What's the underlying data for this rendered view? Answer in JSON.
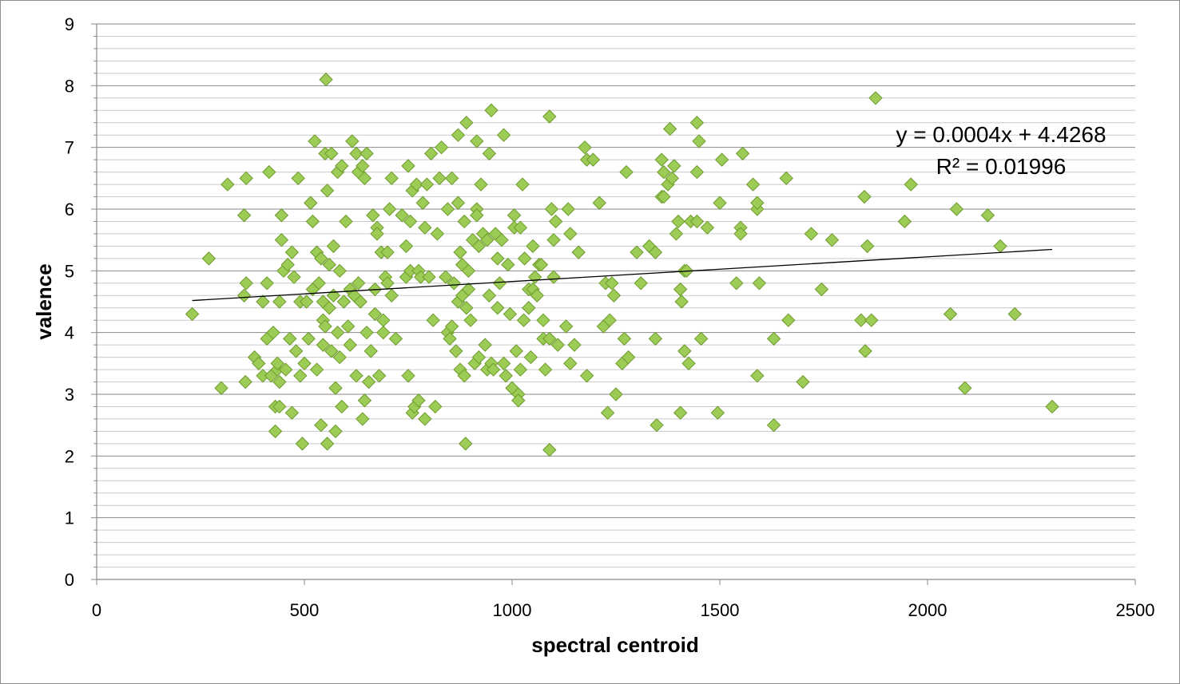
{
  "chart_data": {
    "type": "scatter",
    "xlabel": "spectral centroid",
    "ylabel": "valence",
    "xlim": [
      0,
      2500
    ],
    "ylim": [
      0,
      9
    ],
    "x_ticks": [
      0,
      500,
      1000,
      1500,
      2000,
      2500
    ],
    "y_ticks": [
      0,
      1,
      2,
      3,
      4,
      5,
      6,
      7,
      8,
      9
    ],
    "y_minor_step": 0.2,
    "grid": "horizontal",
    "marker": "diamond",
    "marker_color": "#9ccc55",
    "marker_edge_color": "#6e9a2e",
    "trendline": {
      "type": "linear",
      "slope": 0.0004,
      "intercept": 4.4268,
      "x_range": [
        230,
        2300
      ],
      "equation": "y = 0.0004x + 4.4268",
      "r_squared": "R² = 0.01996"
    },
    "points": [
      [
        230,
        4.3
      ],
      [
        270,
        5.2
      ],
      [
        300,
        3.1
      ],
      [
        315,
        6.4
      ],
      [
        355,
        5.9
      ],
      [
        355,
        4.6
      ],
      [
        360,
        4.8
      ],
      [
        360,
        6.5
      ],
      [
        358,
        3.2
      ],
      [
        380,
        3.6
      ],
      [
        390,
        3.5
      ],
      [
        400,
        4.5
      ],
      [
        400,
        3.3
      ],
      [
        410,
        3.9
      ],
      [
        410,
        4.8
      ],
      [
        415,
        6.6
      ],
      [
        420,
        3.3
      ],
      [
        425,
        4.0
      ],
      [
        430,
        2.8
      ],
      [
        430,
        2.4
      ],
      [
        435,
        3.4
      ],
      [
        435,
        3.5
      ],
      [
        440,
        2.8
      ],
      [
        440,
        3.2
      ],
      [
        440,
        4.5
      ],
      [
        445,
        5.5
      ],
      [
        445,
        5.9
      ],
      [
        450,
        5.0
      ],
      [
        455,
        3.4
      ],
      [
        460,
        5.1
      ],
      [
        465,
        3.9
      ],
      [
        470,
        5.3
      ],
      [
        470,
        2.7
      ],
      [
        475,
        4.9
      ],
      [
        480,
        3.7
      ],
      [
        485,
        6.5
      ],
      [
        490,
        4.5
      ],
      [
        490,
        3.3
      ],
      [
        495,
        2.2
      ],
      [
        500,
        3.5
      ],
      [
        505,
        4.5
      ],
      [
        510,
        3.9
      ],
      [
        515,
        6.1
      ],
      [
        520,
        4.7
      ],
      [
        520,
        5.8
      ],
      [
        525,
        7.1
      ],
      [
        530,
        5.3
      ],
      [
        530,
        3.4
      ],
      [
        535,
        4.8
      ],
      [
        540,
        5.2
      ],
      [
        540,
        2.5
      ],
      [
        545,
        4.2
      ],
      [
        545,
        3.8
      ],
      [
        545,
        4.5
      ],
      [
        550,
        6.9
      ],
      [
        550,
        4.1
      ],
      [
        552,
        8.1
      ],
      [
        555,
        2.2
      ],
      [
        555,
        6.3
      ],
      [
        560,
        5.1
      ],
      [
        560,
        4.4
      ],
      [
        565,
        3.7
      ],
      [
        565,
        6.9
      ],
      [
        570,
        5.4
      ],
      [
        570,
        4.6
      ],
      [
        575,
        3.1
      ],
      [
        575,
        2.4
      ],
      [
        580,
        6.6
      ],
      [
        580,
        4.0
      ],
      [
        585,
        5.0
      ],
      [
        585,
        3.6
      ],
      [
        590,
        6.7
      ],
      [
        590,
        2.8
      ],
      [
        595,
        4.5
      ],
      [
        600,
        5.8
      ],
      [
        605,
        4.1
      ],
      [
        610,
        3.8
      ],
      [
        610,
        4.7
      ],
      [
        615,
        7.1
      ],
      [
        620,
        4.6
      ],
      [
        625,
        6.9
      ],
      [
        625,
        3.3
      ],
      [
        630,
        4.8
      ],
      [
        630,
        6.6
      ],
      [
        635,
        4.5
      ],
      [
        640,
        6.7
      ],
      [
        640,
        2.6
      ],
      [
        645,
        6.5
      ],
      [
        645,
        2.9
      ],
      [
        650,
        6.9
      ],
      [
        650,
        4.0
      ],
      [
        655,
        3.2
      ],
      [
        660,
        3.7
      ],
      [
        665,
        5.9
      ],
      [
        670,
        4.7
      ],
      [
        670,
        4.3
      ],
      [
        675,
        5.7
      ],
      [
        675,
        5.6
      ],
      [
        680,
        3.3
      ],
      [
        685,
        5.3
      ],
      [
        690,
        4.0
      ],
      [
        690,
        4.2
      ],
      [
        695,
        4.9
      ],
      [
        700,
        4.8
      ],
      [
        700,
        5.3
      ],
      [
        705,
        6.0
      ],
      [
        710,
        4.6
      ],
      [
        710,
        6.5
      ],
      [
        720,
        3.9
      ],
      [
        735,
        5.9
      ],
      [
        745,
        5.4
      ],
      [
        745,
        4.9
      ],
      [
        750,
        3.3
      ],
      [
        750,
        6.7
      ],
      [
        755,
        5.0
      ],
      [
        755,
        5.8
      ],
      [
        760,
        2.7
      ],
      [
        760,
        6.3
      ],
      [
        765,
        2.8
      ],
      [
        770,
        6.4
      ],
      [
        775,
        2.9
      ],
      [
        775,
        5.0
      ],
      [
        780,
        4.9
      ],
      [
        785,
        6.1
      ],
      [
        790,
        5.7
      ],
      [
        790,
        2.6
      ],
      [
        795,
        6.4
      ],
      [
        800,
        4.9
      ],
      [
        805,
        6.9
      ],
      [
        810,
        4.2
      ],
      [
        815,
        2.8
      ],
      [
        820,
        5.6
      ],
      [
        825,
        6.5
      ],
      [
        830,
        7.0
      ],
      [
        840,
        4.9
      ],
      [
        845,
        6.0
      ],
      [
        845,
        4.0
      ],
      [
        850,
        3.9
      ],
      [
        855,
        6.5
      ],
      [
        855,
        4.1
      ],
      [
        860,
        4.8
      ],
      [
        865,
        3.7
      ],
      [
        870,
        7.2
      ],
      [
        870,
        6.1
      ],
      [
        870,
        4.5
      ],
      [
        875,
        5.3
      ],
      [
        875,
        3.4
      ],
      [
        880,
        5.1
      ],
      [
        880,
        4.6
      ],
      [
        885,
        5.8
      ],
      [
        885,
        3.3
      ],
      [
        888,
        2.2
      ],
      [
        890,
        7.4
      ],
      [
        890,
        4.4
      ],
      [
        895,
        4.7
      ],
      [
        895,
        5.0
      ],
      [
        900,
        4.2
      ],
      [
        905,
        5.5
      ],
      [
        910,
        3.5
      ],
      [
        915,
        7.1
      ],
      [
        915,
        6.0
      ],
      [
        915,
        5.9
      ],
      [
        920,
        5.4
      ],
      [
        920,
        3.6
      ],
      [
        925,
        6.4
      ],
      [
        930,
        5.6
      ],
      [
        935,
        3.8
      ],
      [
        940,
        5.5
      ],
      [
        940,
        3.4
      ],
      [
        945,
        6.9
      ],
      [
        945,
        4.6
      ],
      [
        950,
        7.6
      ],
      [
        950,
        3.5
      ],
      [
        955,
        3.4
      ],
      [
        960,
        5.6
      ],
      [
        965,
        4.4
      ],
      [
        965,
        5.2
      ],
      [
        970,
        4.8
      ],
      [
        975,
        5.5
      ],
      [
        980,
        7.2
      ],
      [
        980,
        3.5
      ],
      [
        985,
        3.3
      ],
      [
        990,
        5.1
      ],
      [
        995,
        4.3
      ],
      [
        1000,
        3.1
      ],
      [
        1005,
        5.9
      ],
      [
        1005,
        5.7
      ],
      [
        1010,
        3.7
      ],
      [
        1015,
        3.0
      ],
      [
        1015,
        2.9
      ],
      [
        1020,
        5.7
      ],
      [
        1020,
        3.4
      ],
      [
        1025,
        6.4
      ],
      [
        1028,
        4.2
      ],
      [
        1030,
        5.2
      ],
      [
        1040,
        4.7
      ],
      [
        1040,
        4.4
      ],
      [
        1045,
        3.6
      ],
      [
        1050,
        4.7
      ],
      [
        1050,
        5.4
      ],
      [
        1055,
        4.9
      ],
      [
        1060,
        4.6
      ],
      [
        1065,
        5.1
      ],
      [
        1070,
        5.1
      ],
      [
        1075,
        3.9
      ],
      [
        1075,
        4.2
      ],
      [
        1080,
        3.4
      ],
      [
        1090,
        3.9
      ],
      [
        1090,
        2.1
      ],
      [
        1090,
        7.5
      ],
      [
        1095,
        6.0
      ],
      [
        1100,
        4.9
      ],
      [
        1100,
        5.5
      ],
      [
        1105,
        5.8
      ],
      [
        1110,
        3.8
      ],
      [
        1130,
        4.1
      ],
      [
        1135,
        6.0
      ],
      [
        1140,
        5.6
      ],
      [
        1140,
        3.5
      ],
      [
        1150,
        3.8
      ],
      [
        1160,
        5.3
      ],
      [
        1175,
        7.0
      ],
      [
        1180,
        6.8
      ],
      [
        1180,
        3.3
      ],
      [
        1195,
        6.8
      ],
      [
        1210,
        6.1
      ],
      [
        1220,
        4.1
      ],
      [
        1225,
        4.8
      ],
      [
        1230,
        2.7
      ],
      [
        1235,
        4.2
      ],
      [
        1240,
        4.8
      ],
      [
        1245,
        4.6
      ],
      [
        1250,
        3.0
      ],
      [
        1265,
        3.5
      ],
      [
        1270,
        3.9
      ],
      [
        1275,
        6.6
      ],
      [
        1280,
        3.6
      ],
      [
        1300,
        5.3
      ],
      [
        1310,
        4.8
      ],
      [
        1330,
        5.4
      ],
      [
        1345,
        5.3
      ],
      [
        1345,
        3.9
      ],
      [
        1348,
        2.5
      ],
      [
        1360,
        6.2
      ],
      [
        1360,
        6.8
      ],
      [
        1365,
        6.2
      ],
      [
        1365,
        6.6
      ],
      [
        1375,
        6.4
      ],
      [
        1380,
        7.3
      ],
      [
        1385,
        6.5
      ],
      [
        1390,
        6.7
      ],
      [
        1395,
        5.6
      ],
      [
        1400,
        5.8
      ],
      [
        1405,
        4.7
      ],
      [
        1405,
        2.7
      ],
      [
        1408,
        4.5
      ],
      [
        1415,
        5.0
      ],
      [
        1415,
        3.7
      ],
      [
        1420,
        5.0
      ],
      [
        1425,
        3.5
      ],
      [
        1430,
        5.8
      ],
      [
        1445,
        6.6
      ],
      [
        1445,
        7.4
      ],
      [
        1445,
        5.8
      ],
      [
        1450,
        7.1
      ],
      [
        1455,
        3.9
      ],
      [
        1470,
        5.7
      ],
      [
        1495,
        2.7
      ],
      [
        1500,
        6.1
      ],
      [
        1505,
        6.8
      ],
      [
        1540,
        4.8
      ],
      [
        1550,
        5.7
      ],
      [
        1550,
        5.6
      ],
      [
        1555,
        6.9
      ],
      [
        1580,
        6.4
      ],
      [
        1590,
        6.0
      ],
      [
        1590,
        6.1
      ],
      [
        1590,
        3.3
      ],
      [
        1595,
        4.8
      ],
      [
        1630,
        3.9
      ],
      [
        1630,
        2.5
      ],
      [
        1660,
        6.5
      ],
      [
        1665,
        4.2
      ],
      [
        1700,
        3.2
      ],
      [
        1720,
        5.6
      ],
      [
        1745,
        4.7
      ],
      [
        1770,
        5.5
      ],
      [
        1840,
        4.2
      ],
      [
        1848,
        6.2
      ],
      [
        1850,
        3.7
      ],
      [
        1855,
        5.4
      ],
      [
        1865,
        4.2
      ],
      [
        1875,
        7.8
      ],
      [
        1945,
        5.8
      ],
      [
        1960,
        6.4
      ],
      [
        2055,
        4.3
      ],
      [
        2070,
        6.0
      ],
      [
        2090,
        3.1
      ],
      [
        2145,
        5.9
      ],
      [
        2175,
        5.4
      ],
      [
        2210,
        4.3
      ],
      [
        2300,
        2.8
      ]
    ]
  }
}
